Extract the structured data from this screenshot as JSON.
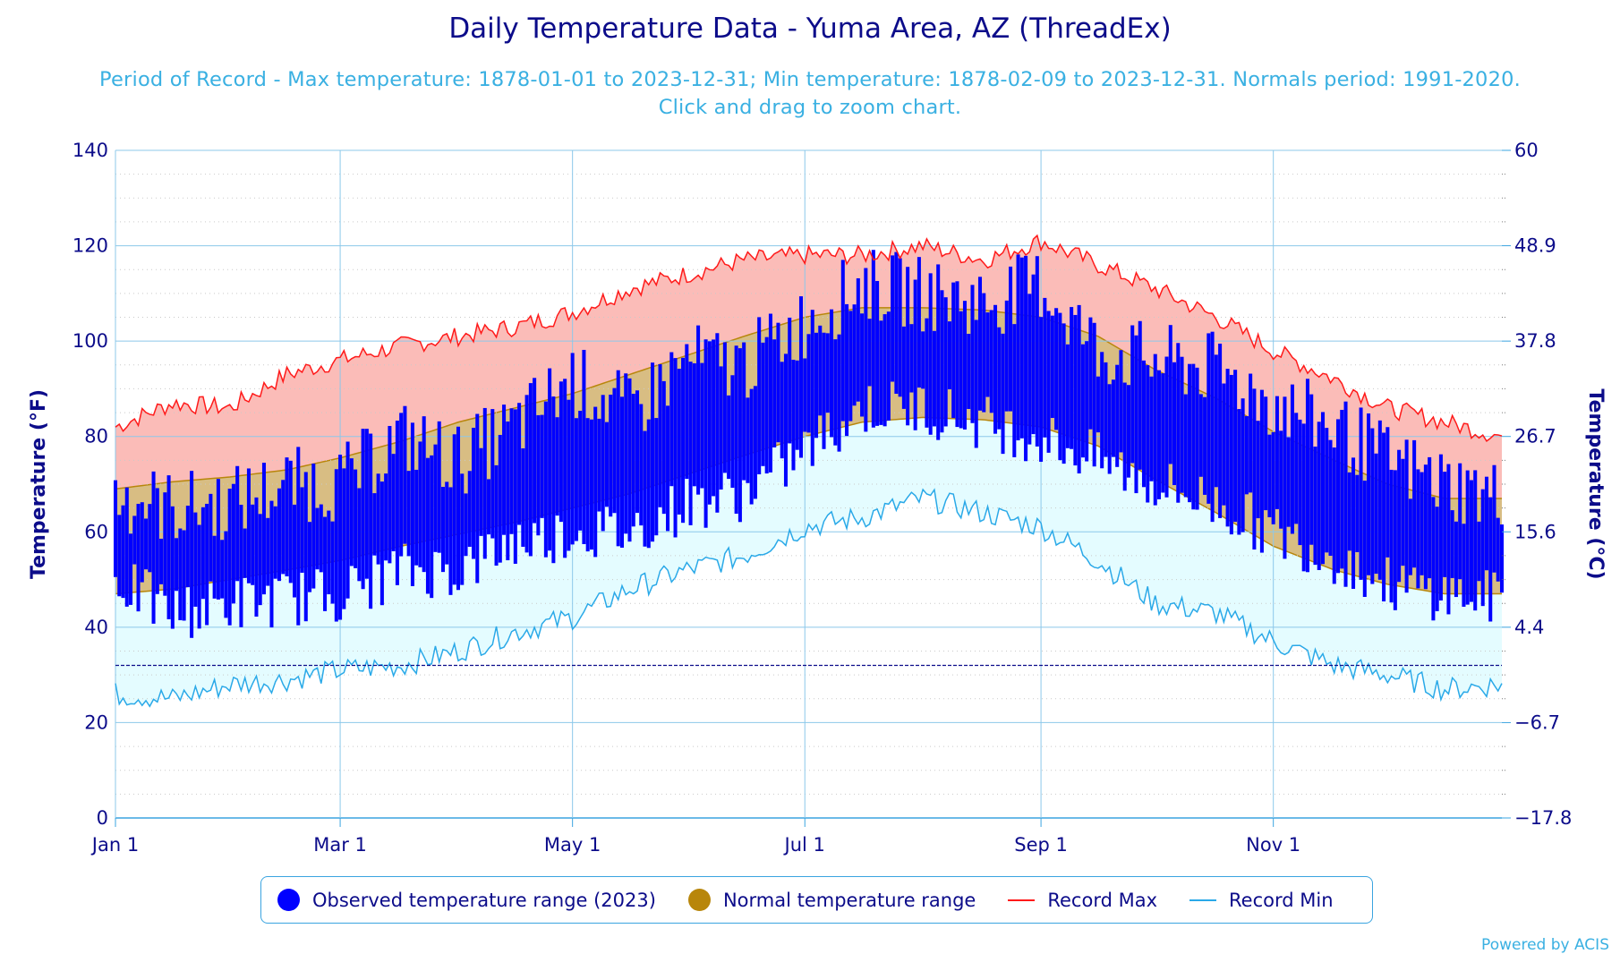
{
  "chart_data": {
    "type": "area",
    "title": "Daily Temperature Data - Yuma Area, AZ (ThreadEx)",
    "subtitle": "Period of Record - Max temperature: 1878-01-01 to 2023-12-31; Min temperature: 1878-02-09 to 2023-12-31. Normals period: 1991-2020. Click and drag to zoom chart.",
    "ylabel": "Temperature (°F)",
    "y2label": "Temperature (°C)",
    "ylim": [
      0,
      140
    ],
    "yticks": [
      "0",
      "20",
      "40",
      "60",
      "80",
      "100",
      "120",
      "140"
    ],
    "y2ticks": [
      "−17.8",
      "−6.7",
      "4.4",
      "15.6",
      "26.7",
      "37.8",
      "48.9",
      "60"
    ],
    "xticks": [
      {
        "label": "Jan 1",
        "day": 0
      },
      {
        "label": "Mar 1",
        "day": 59
      },
      {
        "label": "May 1",
        "day": 120
      },
      {
        "label": "Jul 1",
        "day": 181
      },
      {
        "label": "Sep 1",
        "day": 243
      },
      {
        "label": "Nov 1",
        "day": 304
      }
    ],
    "xlim": [
      0,
      364
    ],
    "freezing_line": 32,
    "grid": true,
    "legend_position": "bottom",
    "series": [
      {
        "name": "Observed temperature range (2023)",
        "color": "#0000ff",
        "style": "daily vertical bars (low to high)",
        "keypoints_day": [
          0,
          15,
          30,
          45,
          59,
          75,
          90,
          105,
          120,
          135,
          150,
          165,
          181,
          196,
          212,
          228,
          243,
          258,
          273,
          289,
          304,
          320,
          334,
          349,
          364
        ],
        "high": [
          68,
          65,
          66,
          70,
          70,
          80,
          75,
          82,
          92,
          85,
          96,
          95,
          104,
          112,
          110,
          108,
          112,
          98,
          96,
          94,
          87,
          82,
          75,
          70,
          67
        ],
        "low": [
          50,
          43,
          45,
          46,
          47,
          52,
          52,
          58,
          60,
          60,
          66,
          68,
          77,
          86,
          86,
          83,
          80,
          75,
          70,
          66,
          60,
          55,
          49,
          47,
          46
        ]
      },
      {
        "name": "Normal temperature range",
        "color": "#b8860b",
        "fill": "#d8bd83",
        "keypoints_day": [
          0,
          15,
          30,
          45,
          59,
          75,
          90,
          105,
          120,
          135,
          150,
          165,
          181,
          196,
          212,
          228,
          243,
          258,
          273,
          289,
          304,
          320,
          334,
          349,
          364
        ],
        "high": [
          69,
          70.5,
          71.5,
          73,
          75.5,
          79,
          83,
          86,
          89,
          93,
          97,
          101,
          105,
          107,
          107,
          106.5,
          105,
          101,
          94,
          88,
          81,
          75,
          70,
          67,
          67
        ],
        "low": [
          47,
          48,
          50,
          52,
          54,
          57,
          59.5,
          62,
          65,
          68,
          72,
          76,
          80,
          83,
          84,
          83.5,
          82,
          78,
          71,
          64,
          57,
          52,
          49,
          47,
          47
        ]
      },
      {
        "name": "Record Max",
        "color": "#ff1a1a",
        "fill": "#fbbcb8",
        "keypoints_day": [
          0,
          15,
          30,
          45,
          59,
          75,
          90,
          105,
          120,
          135,
          150,
          165,
          181,
          196,
          212,
          228,
          243,
          258,
          273,
          289,
          304,
          320,
          334,
          349,
          364
        ],
        "values": [
          82,
          87,
          86,
          93,
          96,
          99,
          101,
          103,
          106,
          111,
          114,
          117,
          118,
          118,
          120,
          117,
          121,
          116,
          111,
          105,
          98,
          92,
          86,
          83,
          80
        ]
      },
      {
        "name": "Record Min",
        "color": "#2aa9e8",
        "fill": "#e4fcff",
        "keypoints_day": [
          0,
          15,
          30,
          45,
          59,
          75,
          90,
          105,
          120,
          135,
          150,
          165,
          181,
          196,
          212,
          228,
          243,
          258,
          273,
          289,
          304,
          320,
          334,
          349,
          364
        ],
        "values": [
          26,
          25,
          28,
          29,
          31,
          32,
          35,
          39,
          42,
          48,
          52,
          55,
          61,
          63,
          67,
          64,
          61,
          54,
          45,
          43,
          37,
          32,
          30,
          27,
          28
        ]
      }
    ]
  },
  "legend": {
    "observed": "Observed temperature range (2023)",
    "normal": "Normal temperature range",
    "record_max": "Record Max",
    "record_min": "Record Min"
  },
  "credit": "Powered by ACIS"
}
